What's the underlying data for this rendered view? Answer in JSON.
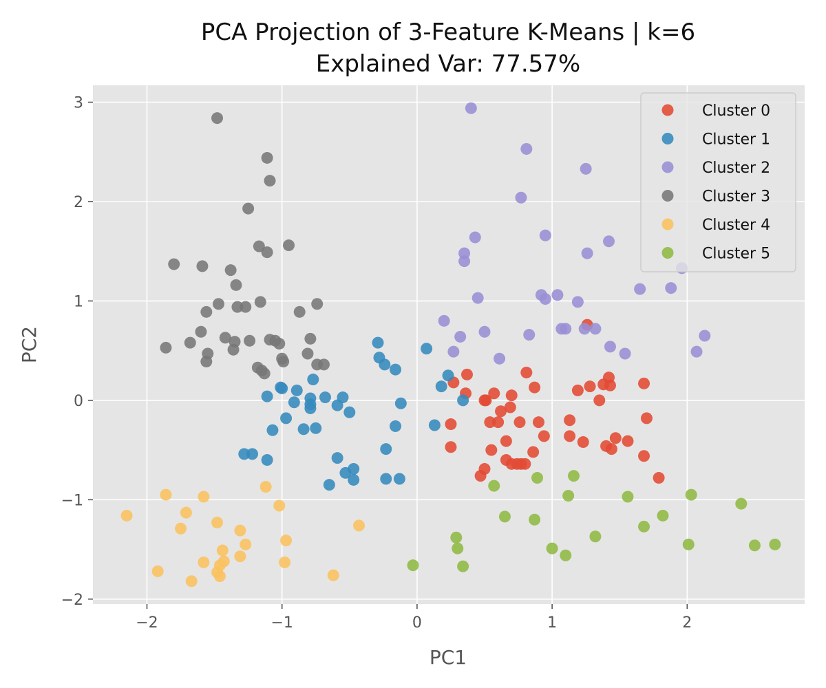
{
  "chart_data": {
    "type": "scatter",
    "title": "PCA Projection of 3-Feature K-Means | k=6",
    "subtitle": "Explained Var: 77.57%",
    "xlabel": "PC1",
    "ylabel": "PC2",
    "xlim": [
      -2.4,
      2.87
    ],
    "ylim": [
      -2.05,
      3.17
    ],
    "xticks": [
      -2,
      -1,
      0,
      1,
      2
    ],
    "xtick_labels": [
      "−2",
      "−1",
      "0",
      "1",
      "2"
    ],
    "yticks": [
      -2,
      -1,
      0,
      1,
      2,
      3
    ],
    "ytick_labels": [
      "−2",
      "−1",
      "0",
      "1",
      "2",
      "3"
    ],
    "grid": true,
    "legend_position": "top-right",
    "background": "#e5e5e5",
    "series": [
      {
        "name": "Cluster 0",
        "color": "#e24a33",
        "points": [
          [
            0.25,
            -0.24
          ],
          [
            0.25,
            -0.47
          ],
          [
            0.27,
            0.18
          ],
          [
            0.37,
            0.26
          ],
          [
            0.36,
            0.07
          ],
          [
            0.47,
            -0.76
          ],
          [
            0.5,
            0.0
          ],
          [
            0.51,
            0.0
          ],
          [
            0.5,
            -0.69
          ],
          [
            0.54,
            -0.22
          ],
          [
            0.55,
            -0.5
          ],
          [
            0.57,
            0.07
          ],
          [
            0.6,
            -0.22
          ],
          [
            0.62,
            -0.11
          ],
          [
            0.66,
            -0.41
          ],
          [
            0.66,
            -0.6
          ],
          [
            0.69,
            -0.07
          ],
          [
            0.7,
            0.05
          ],
          [
            0.7,
            -0.64
          ],
          [
            0.74,
            -0.64
          ],
          [
            0.77,
            -0.64
          ],
          [
            0.76,
            -0.22
          ],
          [
            0.8,
            -0.64
          ],
          [
            0.81,
            0.28
          ],
          [
            0.86,
            -0.52
          ],
          [
            0.87,
            0.13
          ],
          [
            0.9,
            -0.22
          ],
          [
            0.94,
            -0.36
          ],
          [
            1.13,
            -0.2
          ],
          [
            1.13,
            -0.36
          ],
          [
            1.19,
            0.1
          ],
          [
            1.23,
            -0.42
          ],
          [
            1.26,
            0.76
          ],
          [
            1.28,
            0.14
          ],
          [
            1.35,
            0.0
          ],
          [
            1.38,
            0.16
          ],
          [
            1.4,
            -0.46
          ],
          [
            1.42,
            0.23
          ],
          [
            1.43,
            0.15
          ],
          [
            1.44,
            -0.49
          ],
          [
            1.47,
            -0.38
          ],
          [
            1.56,
            -0.41
          ],
          [
            1.68,
            0.17
          ],
          [
            1.68,
            -0.56
          ],
          [
            1.7,
            -0.18
          ],
          [
            1.79,
            -0.78
          ]
        ]
      },
      {
        "name": "Cluster 1",
        "color": "#348abd",
        "points": [
          [
            -1.28,
            -0.54
          ],
          [
            -1.22,
            -0.54
          ],
          [
            -1.11,
            0.04
          ],
          [
            -1.11,
            -0.6
          ],
          [
            -1.07,
            -0.3
          ],
          [
            -1.0,
            0.12
          ],
          [
            -1.01,
            0.13
          ],
          [
            -0.97,
            -0.18
          ],
          [
            -0.91,
            -0.02
          ],
          [
            -0.89,
            0.1
          ],
          [
            -0.84,
            -0.29
          ],
          [
            -0.79,
            0.02
          ],
          [
            -0.79,
            -0.04
          ],
          [
            -0.79,
            -0.08
          ],
          [
            -0.77,
            0.21
          ],
          [
            -0.75,
            -0.28
          ],
          [
            -0.68,
            0.03
          ],
          [
            -0.65,
            -0.85
          ],
          [
            -0.59,
            -0.05
          ],
          [
            -0.59,
            -0.58
          ],
          [
            -0.55,
            0.03
          ],
          [
            -0.53,
            -0.73
          ],
          [
            -0.5,
            -0.12
          ],
          [
            -0.47,
            -0.69
          ],
          [
            -0.47,
            -0.8
          ],
          [
            -0.29,
            0.58
          ],
          [
            -0.28,
            0.43
          ],
          [
            -0.24,
            0.36
          ],
          [
            -0.23,
            -0.49
          ],
          [
            -0.23,
            -0.79
          ],
          [
            -0.16,
            0.31
          ],
          [
            -0.16,
            -0.26
          ],
          [
            -0.12,
            -0.03
          ],
          [
            -0.13,
            -0.79
          ],
          [
            0.07,
            0.52
          ],
          [
            0.13,
            -0.25
          ],
          [
            0.18,
            0.14
          ],
          [
            0.23,
            0.25
          ],
          [
            0.34,
            0.0
          ]
        ]
      },
      {
        "name": "Cluster 2",
        "color": "#988ed5",
        "points": [
          [
            0.4,
            2.94
          ],
          [
            0.81,
            2.53
          ],
          [
            1.25,
            2.33
          ],
          [
            0.77,
            2.04
          ],
          [
            0.95,
            1.66
          ],
          [
            0.43,
            1.64
          ],
          [
            1.42,
            1.6
          ],
          [
            0.35,
            1.48
          ],
          [
            1.26,
            1.48
          ],
          [
            0.35,
            1.4
          ],
          [
            1.96,
            1.33
          ],
          [
            1.65,
            1.12
          ],
          [
            1.88,
            1.13
          ],
          [
            0.45,
            1.03
          ],
          [
            0.92,
            1.06
          ],
          [
            0.95,
            1.02
          ],
          [
            1.04,
            1.06
          ],
          [
            1.19,
            0.99
          ],
          [
            0.2,
            0.8
          ],
          [
            0.5,
            0.69
          ],
          [
            0.32,
            0.64
          ],
          [
            0.83,
            0.66
          ],
          [
            1.07,
            0.72
          ],
          [
            1.1,
            0.72
          ],
          [
            1.24,
            0.72
          ],
          [
            1.32,
            0.72
          ],
          [
            0.27,
            0.49
          ],
          [
            0.61,
            0.42
          ],
          [
            1.43,
            0.54
          ],
          [
            1.54,
            0.47
          ],
          [
            2.07,
            0.49
          ],
          [
            2.13,
            0.65
          ]
        ]
      },
      {
        "name": "Cluster 3",
        "color": "#777777",
        "points": [
          [
            -1.48,
            2.84
          ],
          [
            -1.11,
            2.44
          ],
          [
            -1.09,
            2.21
          ],
          [
            -1.25,
            1.93
          ],
          [
            -1.17,
            1.55
          ],
          [
            -1.11,
            1.49
          ],
          [
            -0.95,
            1.56
          ],
          [
            -1.8,
            1.37
          ],
          [
            -1.59,
            1.35
          ],
          [
            -1.38,
            1.31
          ],
          [
            -1.34,
            1.16
          ],
          [
            -1.16,
            0.99
          ],
          [
            -1.47,
            0.97
          ],
          [
            -1.33,
            0.94
          ],
          [
            -1.27,
            0.94
          ],
          [
            -0.74,
            0.97
          ],
          [
            -1.56,
            0.89
          ],
          [
            -0.87,
            0.89
          ],
          [
            -1.6,
            0.69
          ],
          [
            -1.86,
            0.53
          ],
          [
            -1.68,
            0.58
          ],
          [
            -1.42,
            0.63
          ],
          [
            -1.35,
            0.59
          ],
          [
            -1.36,
            0.51
          ],
          [
            -1.24,
            0.6
          ],
          [
            -1.09,
            0.61
          ],
          [
            -1.05,
            0.6
          ],
          [
            -1.02,
            0.57
          ],
          [
            -1.0,
            0.42
          ],
          [
            -0.99,
            0.39
          ],
          [
            -0.79,
            0.62
          ],
          [
            -0.81,
            0.47
          ],
          [
            -1.55,
            0.47
          ],
          [
            -1.56,
            0.39
          ],
          [
            -1.18,
            0.33
          ],
          [
            -1.15,
            0.3
          ],
          [
            -1.13,
            0.27
          ],
          [
            -0.74,
            0.36
          ],
          [
            -0.69,
            0.36
          ]
        ]
      },
      {
        "name": "Cluster 4",
        "color": "#fbc15e",
        "points": [
          [
            -2.15,
            -1.16
          ],
          [
            -1.86,
            -0.95
          ],
          [
            -1.58,
            -0.97
          ],
          [
            -1.71,
            -1.13
          ],
          [
            -1.75,
            -1.29
          ],
          [
            -1.48,
            -1.23
          ],
          [
            -1.31,
            -1.31
          ],
          [
            -1.12,
            -0.87
          ],
          [
            -1.02,
            -1.06
          ],
          [
            -1.27,
            -1.45
          ],
          [
            -0.97,
            -1.41
          ],
          [
            -1.44,
            -1.51
          ],
          [
            -1.31,
            -1.57
          ],
          [
            -1.58,
            -1.63
          ],
          [
            -1.43,
            -1.62
          ],
          [
            -1.46,
            -1.66
          ],
          [
            -1.48,
            -1.73
          ],
          [
            -1.46,
            -1.77
          ],
          [
            -1.92,
            -1.72
          ],
          [
            -1.67,
            -1.82
          ],
          [
            -0.98,
            -1.63
          ],
          [
            -0.62,
            -1.76
          ],
          [
            -0.43,
            -1.26
          ]
        ]
      },
      {
        "name": "Cluster 5",
        "color": "#8eba42",
        "points": [
          [
            -0.03,
            -1.66
          ],
          [
            0.29,
            -1.38
          ],
          [
            0.3,
            -1.49
          ],
          [
            0.34,
            -1.67
          ],
          [
            0.57,
            -0.86
          ],
          [
            0.65,
            -1.17
          ],
          [
            0.87,
            -1.2
          ],
          [
            0.89,
            -0.78
          ],
          [
            1.0,
            -1.49
          ],
          [
            1.1,
            -1.56
          ],
          [
            1.12,
            -0.96
          ],
          [
            1.16,
            -0.76
          ],
          [
            1.32,
            -1.37
          ],
          [
            1.56,
            -0.97
          ],
          [
            1.68,
            -1.27
          ],
          [
            1.82,
            -1.16
          ],
          [
            2.01,
            -1.45
          ],
          [
            2.03,
            -0.95
          ],
          [
            2.4,
            -1.04
          ],
          [
            2.5,
            -1.46
          ],
          [
            2.65,
            -1.45
          ]
        ]
      }
    ]
  }
}
